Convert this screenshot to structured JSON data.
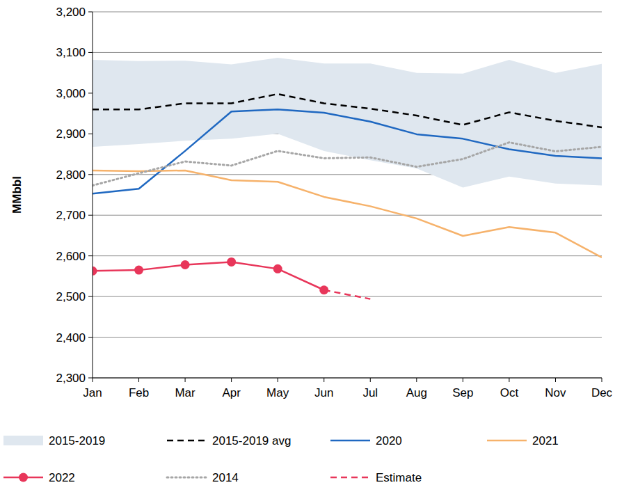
{
  "chart_data": {
    "type": "line",
    "y_label": "MMbbl",
    "categories": [
      "Jan",
      "Feb",
      "Mar",
      "Apr",
      "May",
      "Jun",
      "Jul",
      "Aug",
      "Sep",
      "Oct",
      "Nov",
      "Dec"
    ],
    "ylim": [
      2300,
      3200
    ],
    "yticks": [
      {
        "value": 2300,
        "label": "2,300"
      },
      {
        "value": 2400,
        "label": "2,400"
      },
      {
        "value": 2500,
        "label": "2,500"
      },
      {
        "value": 2600,
        "label": "2,600"
      },
      {
        "value": 2700,
        "label": "2,700"
      },
      {
        "value": 2800,
        "label": "2,800"
      },
      {
        "value": 2900,
        "label": "2,900"
      },
      {
        "value": 3000,
        "label": "3,000"
      },
      {
        "value": 3100,
        "label": "3,100"
      },
      {
        "value": 3200,
        "label": "3,200"
      }
    ],
    "grid": true,
    "legend": "bottom",
    "series": [
      {
        "name": "2015-2019",
        "type": "band",
        "color": "#dfe7ef",
        "values": [
          3082,
          3079,
          3080,
          3071,
          3087,
          3073,
          3073,
          3050,
          3048,
          3082,
          3050,
          3072
        ],
        "lower": [
          2868,
          2875,
          2883,
          2888,
          2900,
          2858,
          2835,
          2815,
          2768,
          2795,
          2778,
          2773
        ]
      },
      {
        "name": "2015-2019 avg",
        "color": "#000000",
        "line_style": "dashed",
        "values": [
          2960,
          2960,
          2975,
          2975,
          2998,
          2975,
          2962,
          2945,
          2922,
          2953,
          2932,
          2916
        ]
      },
      {
        "name": "2020",
        "color": "#1f68c1",
        "line_style": "solid",
        "values": [
          2753,
          2765,
          2858,
          2955,
          2960,
          2952,
          2930,
          2899,
          2888,
          2862,
          2846,
          2840
        ]
      },
      {
        "name": "2021",
        "color": "#f6b26b",
        "line_style": "solid",
        "values": [
          2810,
          2808,
          2810,
          2786,
          2782,
          2745,
          2722,
          2692,
          2649,
          2671,
          2657,
          2596
        ]
      },
      {
        "name": "2022",
        "color": "#e8365a",
        "line_style": "solid",
        "marker": "circle",
        "values": [
          2563,
          2565,
          2578,
          2585,
          2568,
          2516,
          null,
          null,
          null,
          null,
          null,
          null
        ]
      },
      {
        "name": "2014",
        "color": "#a6a6a6",
        "line_style": "dotted",
        "values": [
          2773,
          2803,
          2832,
          2822,
          2858,
          2840,
          2842,
          2819,
          2838,
          2879,
          2857,
          2868
        ]
      },
      {
        "name": "Estimate",
        "color": "#e8365a",
        "line_style": "dashed",
        "values": [
          null,
          null,
          null,
          null,
          null,
          2516,
          2494,
          null,
          null,
          null,
          null,
          null
        ]
      }
    ]
  }
}
